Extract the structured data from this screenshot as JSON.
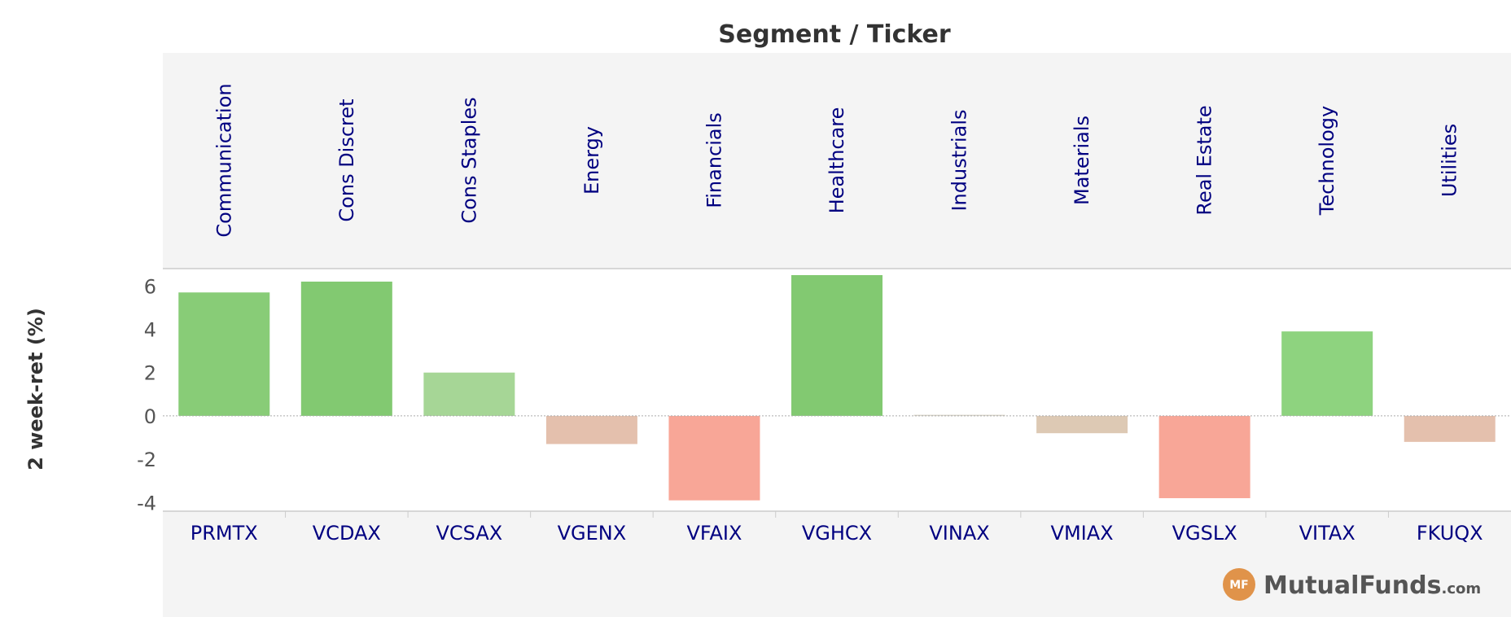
{
  "chart_data": {
    "type": "bar",
    "title": "Segment / Ticker",
    "ylabel": "2 week-ret (%)",
    "xlabel": "",
    "segments": [
      "Communication",
      "Cons Discret",
      "Cons Staples",
      "Energy",
      "Financials",
      "Healthcare",
      "Industrials",
      "Materials",
      "Real Estate",
      "Technology",
      "Utilities"
    ],
    "categories": [
      "PRMTX",
      "VCDAX",
      "VCSAX",
      "VGENX",
      "VFAIX",
      "VGHCX",
      "VINAX",
      "VMIAX",
      "VGSLX",
      "VITAX",
      "FKUQX"
    ],
    "values": [
      5.7,
      6.2,
      2.0,
      -1.3,
      -3.9,
      6.5,
      0.05,
      -0.8,
      -3.8,
      3.9,
      -1.2
    ],
    "colors": [
      "#88cc77",
      "#82c971",
      "#a6d696",
      "#e4c0ad",
      "#f8a697",
      "#82c971",
      "#d9d5c9",
      "#ddc9b4",
      "#f8a697",
      "#8ed37f",
      "#e4c0ad"
    ],
    "ylim": [
      -4.4,
      6.8
    ],
    "yticks": [
      6,
      4,
      2,
      0,
      -2,
      -4
    ],
    "ytick_labels": [
      "6",
      "4",
      "2",
      "0",
      "-2",
      "-4"
    ],
    "grid": false,
    "legend": "none"
  },
  "brand": {
    "logo_mark": "MF",
    "name": "MutualFunds",
    "suffix": ".com",
    "logo_color": "#e0934a"
  }
}
